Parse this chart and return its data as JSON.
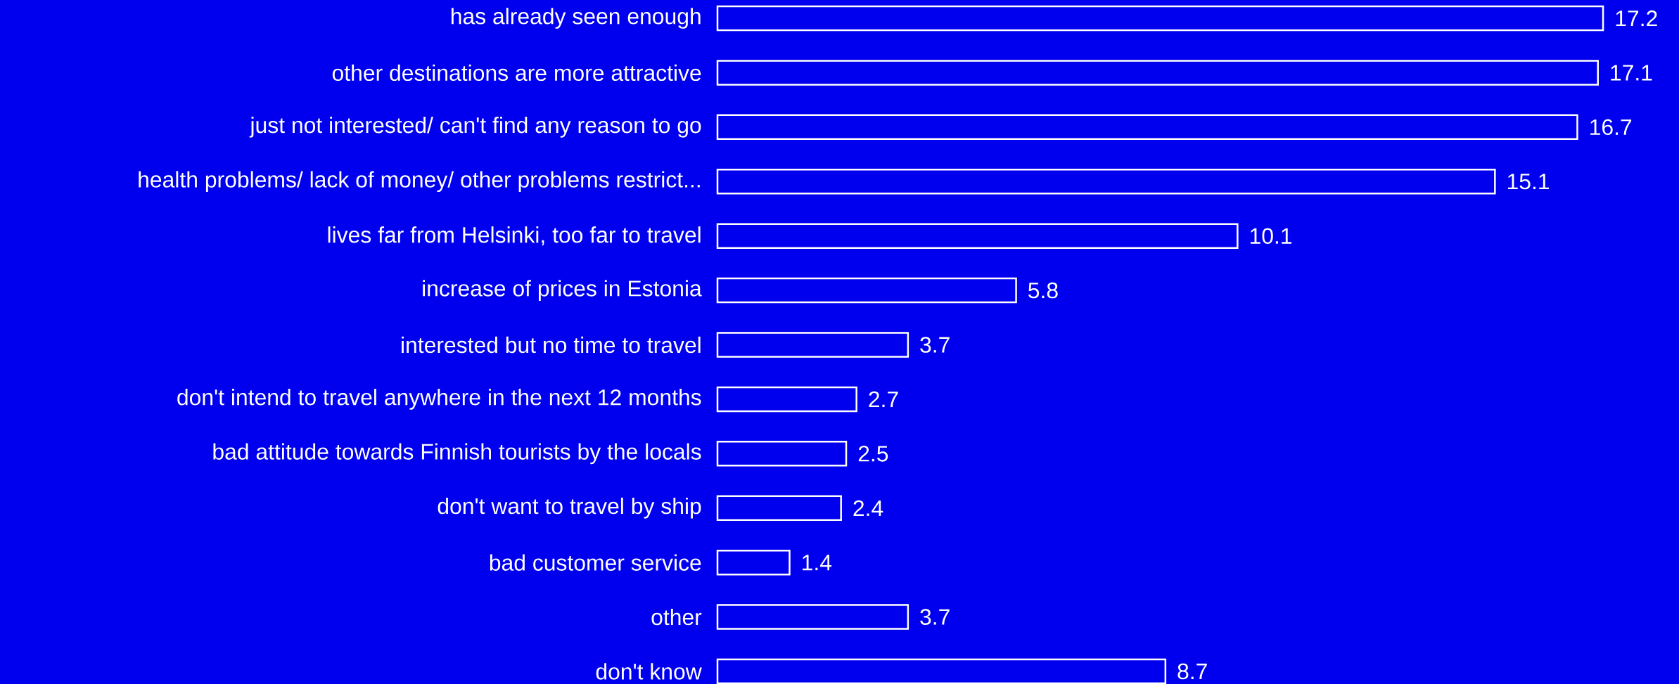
{
  "chart_data": {
    "type": "bar",
    "orientation": "horizontal",
    "categories": [
      "has already seen enough",
      "other destinations are more attractive",
      "just not interested/ can't find any reason to go",
      "health problems/ lack of money/ other problems restrict...",
      "lives far from Helsinki, too far to travel",
      "increase of prices in Estonia",
      "interested but no time to travel",
      "don't intend to travel anywhere in the next 12 months",
      "bad attitude towards Finnish tourists by the locals",
      "don't want to travel by ship",
      "bad customer service",
      "other",
      "don't know"
    ],
    "values": [
      17.2,
      17.1,
      16.7,
      15.1,
      10.1,
      5.8,
      3.7,
      2.7,
      2.5,
      2.4,
      1.4,
      3.7,
      8.7
    ],
    "color": "#0000ee",
    "data_labels": true
  }
}
